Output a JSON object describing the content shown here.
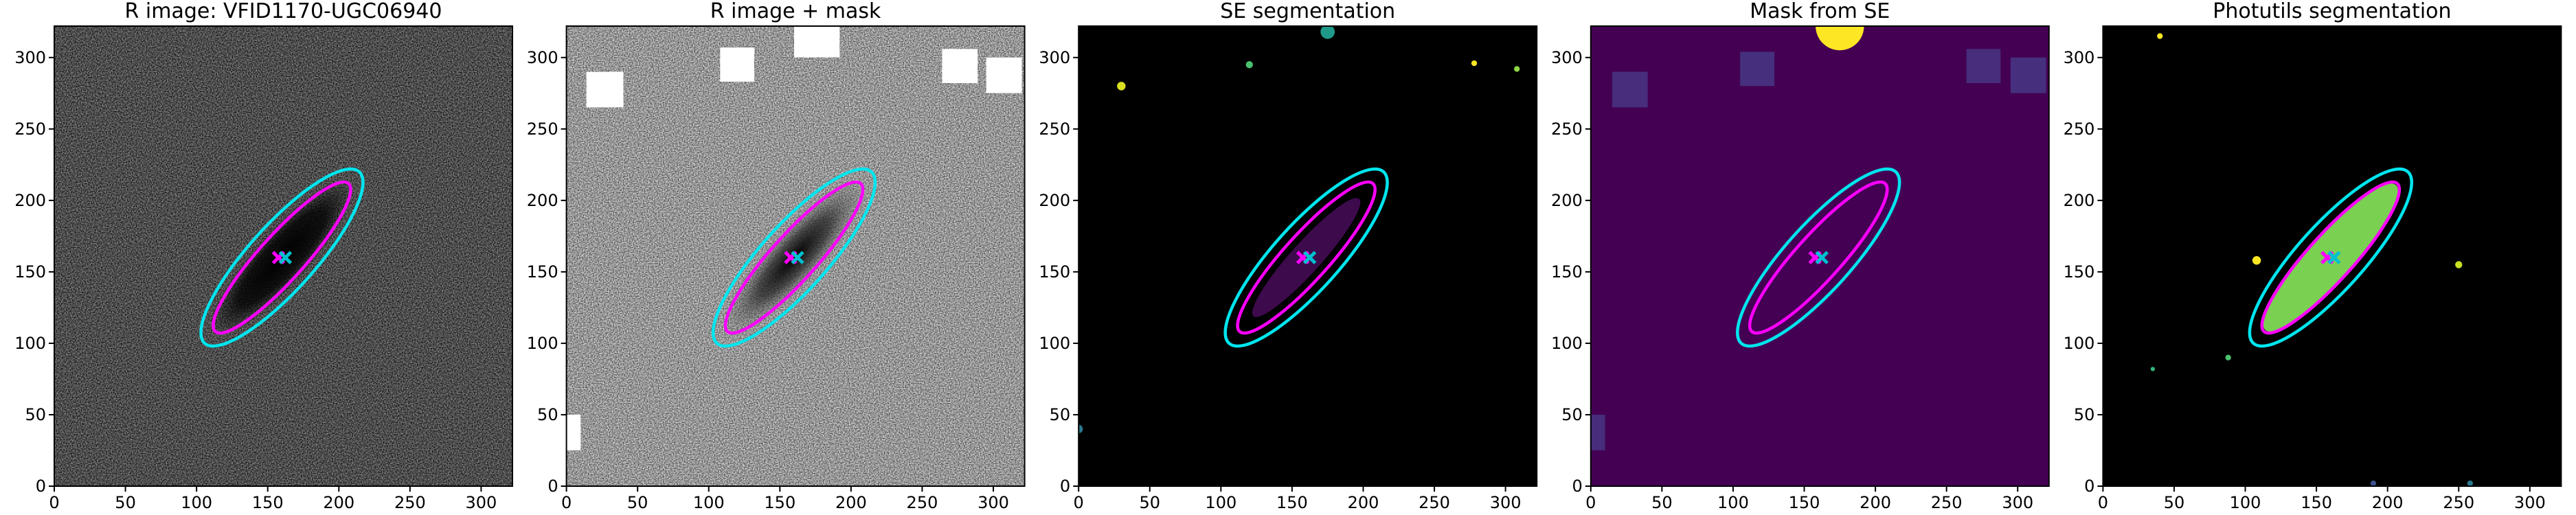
{
  "chart_data": [
    {
      "type": "image",
      "title": "R image: VFID1170-UGC06940",
      "xlim": [
        0,
        322
      ],
      "ylim": [
        0,
        322
      ],
      "xticks": [
        0,
        50,
        100,
        150,
        200,
        250,
        300
      ],
      "yticks": [
        0,
        50,
        100,
        150,
        200,
        250,
        300
      ]
    },
    {
      "type": "image",
      "title": "R image + mask",
      "xlim": [
        0,
        322
      ],
      "ylim": [
        0,
        322
      ],
      "xticks": [
        0,
        50,
        100,
        150,
        200,
        250,
        300
      ],
      "yticks": [
        0,
        50,
        100,
        150,
        200,
        250,
        300
      ]
    },
    {
      "type": "image",
      "title": "SE segmentation",
      "xlim": [
        0,
        322
      ],
      "ylim": [
        0,
        322
      ],
      "xticks": [
        0,
        50,
        100,
        150,
        200,
        250,
        300
      ],
      "yticks": [
        0,
        50,
        100,
        150,
        200,
        250,
        300
      ]
    },
    {
      "type": "image",
      "title": "Mask from SE",
      "xlim": [
        0,
        322
      ],
      "ylim": [
        0,
        322
      ],
      "xticks": [
        0,
        50,
        100,
        150,
        200,
        250,
        300
      ],
      "yticks": [
        0,
        50,
        100,
        150,
        200,
        250,
        300
      ]
    },
    {
      "type": "image",
      "title": "Photutils segmentation",
      "xlim": [
        0,
        322
      ],
      "ylim": [
        0,
        322
      ],
      "xticks": [
        0,
        50,
        100,
        150,
        200,
        250,
        300
      ],
      "yticks": [
        0,
        50,
        100,
        150,
        200,
        250,
        300
      ]
    }
  ]
}
